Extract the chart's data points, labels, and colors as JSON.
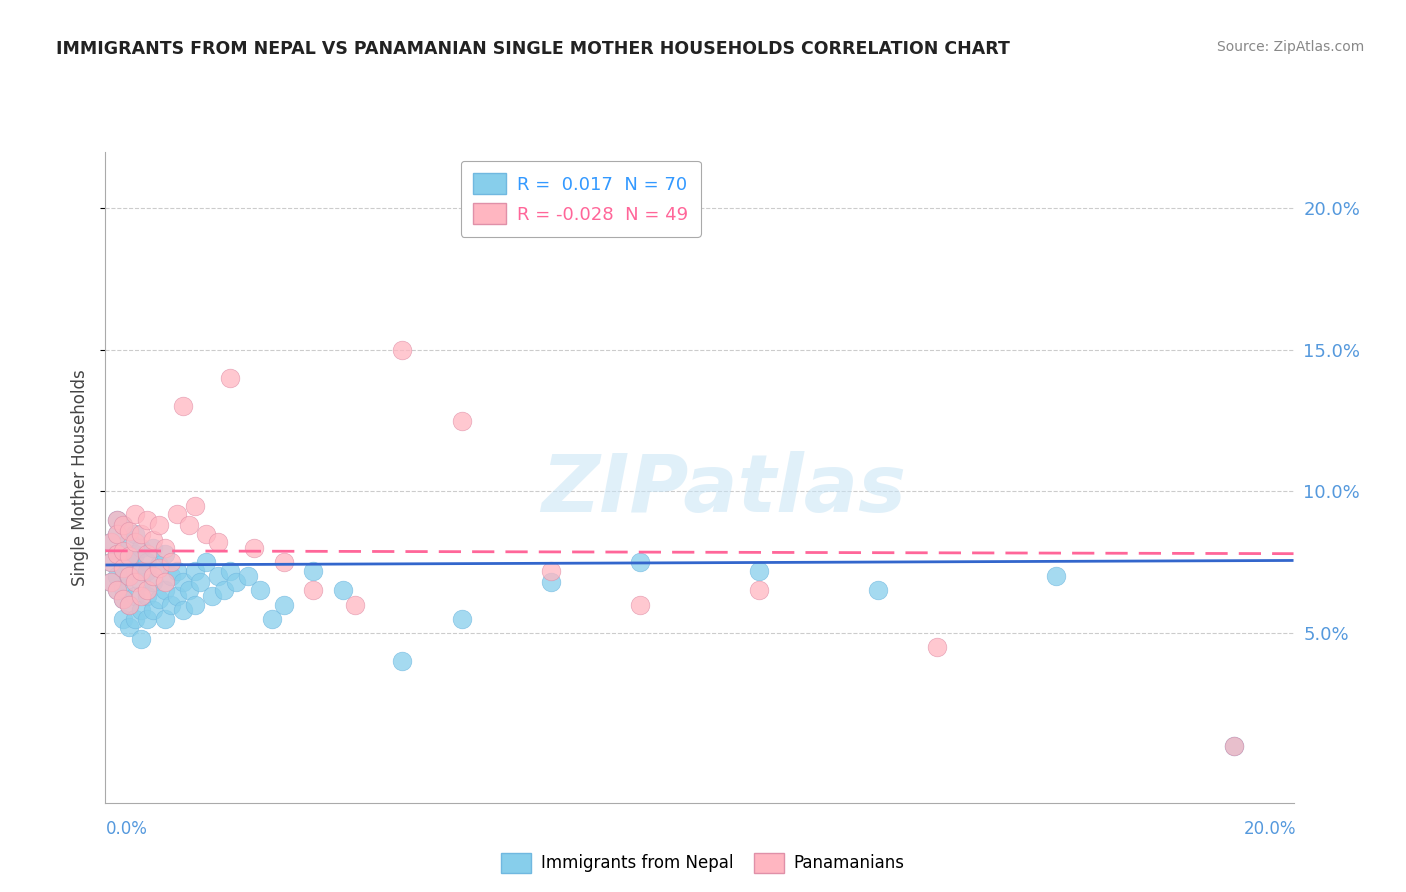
{
  "title": "IMMIGRANTS FROM NEPAL VS PANAMANIAN SINGLE MOTHER HOUSEHOLDS CORRELATION CHART",
  "source": "Source: ZipAtlas.com",
  "ylabel": "Single Mother Households",
  "ylabel_right_vals": [
    0.2,
    0.15,
    0.1,
    0.05
  ],
  "xlim": [
    0.0,
    0.2
  ],
  "ylim": [
    -0.01,
    0.22
  ],
  "color_blue": "#87CEEB",
  "color_pink": "#FFB6C1",
  "line_blue": "#3366CC",
  "line_pink": "#FF6699",
  "watermark_text": "ZIPatlas",
  "nepal_intercept": 0.074,
  "nepal_slope": 0.008,
  "panama_intercept": 0.079,
  "panama_slope": -0.005,
  "nepal_x": [
    0.001,
    0.001,
    0.001,
    0.002,
    0.002,
    0.002,
    0.002,
    0.002,
    0.003,
    0.003,
    0.003,
    0.003,
    0.003,
    0.003,
    0.004,
    0.004,
    0.004,
    0.004,
    0.004,
    0.005,
    0.005,
    0.005,
    0.005,
    0.005,
    0.006,
    0.006,
    0.006,
    0.006,
    0.007,
    0.007,
    0.007,
    0.007,
    0.008,
    0.008,
    0.008,
    0.009,
    0.009,
    0.01,
    0.01,
    0.01,
    0.011,
    0.011,
    0.012,
    0.012,
    0.013,
    0.013,
    0.014,
    0.015,
    0.015,
    0.016,
    0.017,
    0.018,
    0.019,
    0.02,
    0.021,
    0.022,
    0.024,
    0.026,
    0.028,
    0.03,
    0.035,
    0.04,
    0.05,
    0.06,
    0.075,
    0.09,
    0.11,
    0.13,
    0.16,
    0.19
  ],
  "nepal_y": [
    0.075,
    0.082,
    0.068,
    0.09,
    0.078,
    0.065,
    0.085,
    0.07,
    0.088,
    0.073,
    0.062,
    0.079,
    0.066,
    0.055,
    0.083,
    0.07,
    0.06,
    0.077,
    0.052,
    0.085,
    0.072,
    0.063,
    0.078,
    0.055,
    0.08,
    0.068,
    0.058,
    0.048,
    0.075,
    0.063,
    0.055,
    0.072,
    0.08,
    0.068,
    0.058,
    0.074,
    0.062,
    0.078,
    0.065,
    0.055,
    0.07,
    0.06,
    0.072,
    0.063,
    0.068,
    0.058,
    0.065,
    0.072,
    0.06,
    0.068,
    0.075,
    0.063,
    0.07,
    0.065,
    0.072,
    0.068,
    0.07,
    0.065,
    0.055,
    0.06,
    0.072,
    0.065,
    0.04,
    0.055,
    0.068,
    0.075,
    0.072,
    0.065,
    0.07,
    0.01
  ],
  "panama_x": [
    0.001,
    0.001,
    0.001,
    0.002,
    0.002,
    0.002,
    0.002,
    0.003,
    0.003,
    0.003,
    0.003,
    0.004,
    0.004,
    0.004,
    0.004,
    0.005,
    0.005,
    0.005,
    0.006,
    0.006,
    0.006,
    0.007,
    0.007,
    0.007,
    0.008,
    0.008,
    0.009,
    0.009,
    0.01,
    0.01,
    0.011,
    0.012,
    0.013,
    0.014,
    0.015,
    0.017,
    0.019,
    0.021,
    0.025,
    0.03,
    0.035,
    0.042,
    0.05,
    0.06,
    0.075,
    0.09,
    0.11,
    0.14,
    0.19
  ],
  "panama_y": [
    0.082,
    0.075,
    0.068,
    0.09,
    0.078,
    0.065,
    0.085,
    0.088,
    0.073,
    0.062,
    0.079,
    0.086,
    0.07,
    0.06,
    0.077,
    0.092,
    0.082,
    0.068,
    0.085,
    0.072,
    0.063,
    0.09,
    0.078,
    0.065,
    0.083,
    0.07,
    0.088,
    0.073,
    0.08,
    0.068,
    0.075,
    0.092,
    0.13,
    0.088,
    0.095,
    0.085,
    0.082,
    0.14,
    0.08,
    0.075,
    0.065,
    0.06,
    0.15,
    0.125,
    0.072,
    0.06,
    0.065,
    0.045,
    0.01
  ],
  "legend_entries": [
    {
      "label": "R =  0.017  N = 70",
      "color_text": "#3399FF"
    },
    {
      "label": "R = -0.028  N = 49",
      "color_text": "#FF6699"
    }
  ]
}
